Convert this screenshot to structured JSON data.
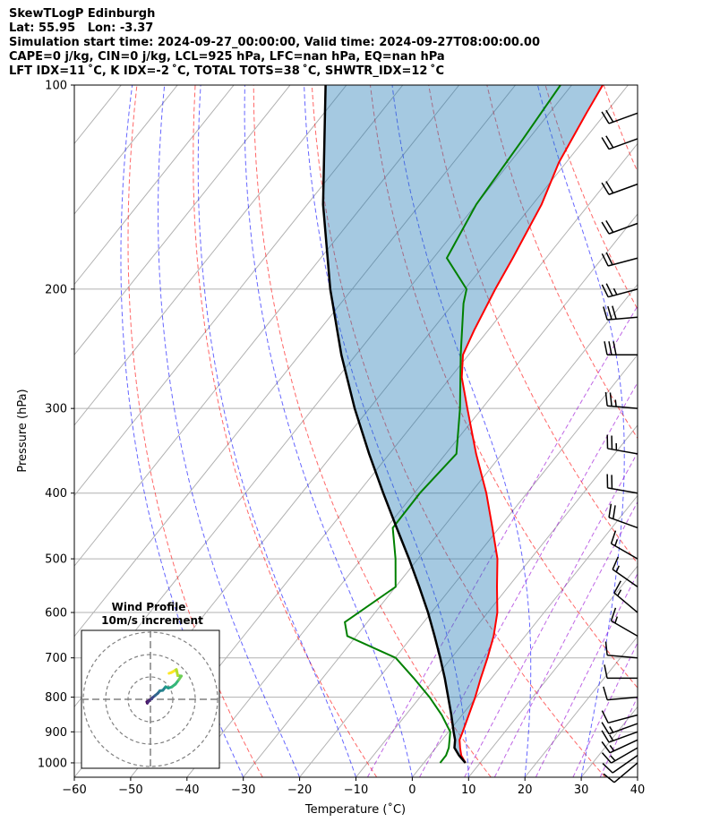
{
  "header": {
    "line1": "SkewTLogP Edinburgh",
    "line2": "Lat: 55.95   Lon: -3.37",
    "line3": "Simulation start time: 2024-09-27_00:00:00, Valid time: 2024-09-27T08:00:00.00",
    "line4": "CAPE=0 j/kg, CIN=0 j/kg, LCL=925 hPa, LFC=nan hPa, EQ=nan hPa",
    "line5": "LFT IDX=11 ˚C, K IDX=-2 ˚C, TOTAL TOTS=38 ˚C, SHWTR_IDX=12 ˚C"
  },
  "chart_data": [
    {
      "type": "line",
      "chart_kind": "skew-T log-P",
      "xlabel": "Temperature (˚C)",
      "ylabel": "Pressure (hPa)",
      "xlim": [
        -60,
        40
      ],
      "ylim": [
        1050,
        100
      ],
      "y_scale": "log",
      "x_ticks": [
        -60,
        -50,
        -40,
        -30,
        -20,
        -10,
        0,
        10,
        20,
        30,
        40
      ],
      "y_ticks": [
        100,
        200,
        300,
        400,
        500,
        600,
        700,
        800,
        900,
        1000
      ],
      "x_tick_labels": [
        "−60",
        "−50",
        "−40",
        "−30",
        "−20",
        "−10",
        "0",
        "10",
        "20",
        "30",
        "40"
      ],
      "y_tick_labels": [
        "100",
        "200",
        "300",
        "400",
        "500",
        "600",
        "700",
        "800",
        "900",
        "1000"
      ],
      "grid": true,
      "series": [
        {
          "role": "temperature",
          "color": "#ff0000",
          "points": [
            [
              1000,
              7.4
            ],
            [
              975,
              5.6
            ],
            [
              950,
              4.3
            ],
            [
              925,
              3.1
            ],
            [
              900,
              2.5
            ],
            [
              850,
              1.2
            ],
            [
              800,
              -0.2
            ],
            [
              750,
              -1.9
            ],
            [
              700,
              -3.6
            ],
            [
              650,
              -5.6
            ],
            [
              600,
              -8.3
            ],
            [
              550,
              -12.0
            ],
            [
              500,
              -15.9
            ],
            [
              450,
              -21.2
            ],
            [
              400,
              -27.2
            ],
            [
              350,
              -34.6
            ],
            [
              300,
              -42.6
            ],
            [
              270,
              -48.0
            ],
            [
              250,
              -51.0
            ],
            [
              230,
              -52.5
            ],
            [
              200,
              -54.6
            ],
            [
              180,
              -55.9
            ],
            [
              150,
              -58.4
            ],
            [
              130,
              -61.3
            ],
            [
              110,
              -63.4
            ],
            [
              100,
              -64.5
            ]
          ]
        },
        {
          "role": "dewpoint",
          "color": "#008000",
          "points": [
            [
              1000,
              2.9
            ],
            [
              975,
              2.9
            ],
            [
              950,
              2.3
            ],
            [
              900,
              0.3
            ],
            [
              850,
              -3.6
            ],
            [
              800,
              -8.3
            ],
            [
              750,
              -13.8
            ],
            [
              700,
              -19.9
            ],
            [
              650,
              -31.6
            ],
            [
              620,
              -34.0
            ],
            [
              550,
              -30.0
            ],
            [
              500,
              -34.0
            ],
            [
              450,
              -38.9
            ],
            [
              400,
              -39.0
            ],
            [
              350,
              -38.1
            ],
            [
              300,
              -43.9
            ],
            [
              250,
              -51.4
            ],
            [
              210,
              -58.2
            ],
            [
              200,
              -59.7
            ],
            [
              180,
              -67.6
            ],
            [
              150,
              -70.0
            ],
            [
              120,
              -71.0
            ],
            [
              100,
              -72.0
            ]
          ]
        },
        {
          "role": "parcel",
          "color": "#000000",
          "points": [
            [
              1000,
              7.4
            ],
            [
              975,
              5.2
            ],
            [
              950,
              3.3
            ],
            [
              925,
              2.3
            ],
            [
              900,
              0.9
            ],
            [
              850,
              -1.9
            ],
            [
              800,
              -5.0
            ],
            [
              750,
              -8.3
            ],
            [
              700,
              -12.0
            ],
            [
              650,
              -16.1
            ],
            [
              600,
              -20.6
            ],
            [
              550,
              -25.8
            ],
            [
              500,
              -31.6
            ],
            [
              450,
              -38.2
            ],
            [
              400,
              -45.5
            ],
            [
              350,
              -53.6
            ],
            [
              300,
              -62.6
            ],
            [
              250,
              -72.6
            ],
            [
              200,
              -83.9
            ],
            [
              150,
              -97.2
            ],
            [
              100,
              -113.7
            ]
          ]
        }
      ],
      "cin_shading": {
        "color": "#1f77b4",
        "between": [
          "parcel",
          "temperature"
        ]
      },
      "wind_barbs": {
        "color": "#000000",
        "points": [
          [
            1000,
            230,
            8
          ],
          [
            975,
            235,
            12
          ],
          [
            950,
            240,
            14
          ],
          [
            925,
            245,
            16
          ],
          [
            900,
            250,
            16
          ],
          [
            875,
            250,
            14
          ],
          [
            850,
            255,
            12
          ],
          [
            800,
            265,
            10
          ],
          [
            750,
            270,
            10
          ],
          [
            700,
            275,
            12
          ],
          [
            650,
            300,
            14
          ],
          [
            600,
            310,
            14
          ],
          [
            550,
            305,
            14
          ],
          [
            500,
            300,
            14
          ],
          [
            450,
            290,
            18
          ],
          [
            400,
            280,
            22
          ],
          [
            350,
            280,
            24
          ],
          [
            300,
            275,
            26
          ],
          [
            250,
            270,
            30
          ],
          [
            220,
            265,
            28
          ],
          [
            200,
            255,
            24
          ],
          [
            180,
            255,
            22
          ],
          [
            160,
            250,
            22
          ],
          [
            140,
            250,
            22
          ],
          [
            120,
            250,
            20
          ],
          [
            110,
            250,
            18
          ]
        ]
      }
    },
    {
      "type": "scatter",
      "chart_kind": "hodograph",
      "title": "Wind Profile",
      "subtitle": "10m/s increment",
      "rings": [
        10,
        20,
        30
      ],
      "points": [
        [
          -0.9,
          -0.7
        ],
        [
          -1.6,
          -1.1
        ],
        [
          -1.4,
          -1.7
        ],
        [
          -1.2,
          -1.4
        ],
        [
          -0.3,
          -0.3
        ],
        [
          0.5,
          0.2
        ],
        [
          1.0,
          0.8
        ],
        [
          2.1,
          1.7
        ],
        [
          3.3,
          2.7
        ],
        [
          4.2,
          3.8
        ],
        [
          5.5,
          4.0
        ],
        [
          6.8,
          5.6
        ],
        [
          8.0,
          5.0
        ],
        [
          9.5,
          5.5
        ],
        [
          11.2,
          6.8
        ],
        [
          12.7,
          8.8
        ],
        [
          13.8,
          10.4
        ],
        [
          12.2,
          10.6
        ],
        [
          11.6,
          13.3
        ],
        [
          10.5,
          12.6
        ],
        [
          9.2,
          11.9
        ],
        [
          8.3,
          11.6
        ]
      ],
      "colormap": "viridis"
    }
  ]
}
